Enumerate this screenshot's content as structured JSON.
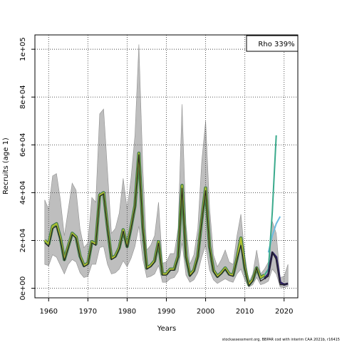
{
  "chart_data": {
    "type": "line",
    "xlabel": "Years",
    "ylabel": "Recruits (age 1)",
    "xlim": [
      1956.5,
      2023.5
    ],
    "ylim": [
      -4000,
      106000
    ],
    "xticks": [
      1960,
      1970,
      1980,
      1990,
      2000,
      2010,
      2020
    ],
    "xtick_labels": [
      "1960",
      "1970",
      "1980",
      "1990",
      "2000",
      "2010",
      "2020"
    ],
    "yticks": [
      0,
      20000,
      40000,
      60000,
      80000,
      100000
    ],
    "ytick_labels": [
      "0e+00",
      "2e+04",
      "4e+04",
      "6e+04",
      "8e+04",
      "1e+05"
    ],
    "grid": true,
    "legend_placement": "top-right",
    "annotation": "Rho 339%",
    "footer": "stockassessment.org, BBPAR cod with interim CAA 2021b, r16415",
    "colors": {
      "band": "#bebebe",
      "band_edge": "#909090",
      "main_line": "#222222",
      "retro_outline": "#3d7a4a",
      "retro_fill": "#b0c030",
      "retro_teal": "#3aaa8c",
      "retro_light_blue": "#6cbbe0",
      "retro_purple": "#2c1f60",
      "grid": "#444444"
    },
    "years": [
      1959,
      1960,
      1961,
      1962,
      1963,
      1964,
      1965,
      1966,
      1967,
      1968,
      1969,
      1970,
      1971,
      1972,
      1973,
      1974,
      1975,
      1976,
      1977,
      1978,
      1979,
      1980,
      1981,
      1982,
      1983,
      1984,
      1985,
      1986,
      1987,
      1988,
      1989,
      1990,
      1991,
      1992,
      1993,
      1994,
      1995,
      1996,
      1997,
      1998,
      1999,
      2000,
      2001,
      2002,
      2003,
      2004,
      2005,
      2006,
      2007,
      2008,
      2009,
      2010,
      2011,
      2012,
      2013,
      2014,
      2015,
      2016,
      2017,
      2018,
      2019,
      2020,
      2021
    ],
    "estimate": [
      19000,
      17500,
      25000,
      26000,
      20000,
      11500,
      17000,
      22500,
      21000,
      13000,
      9000,
      10000,
      19000,
      18000,
      38500,
      39500,
      25000,
      12000,
      13000,
      16500,
      24000,
      17000,
      25000,
      34000,
      56000,
      25000,
      8000,
      9000,
      11000,
      19000,
      5500,
      5500,
      7500,
      7500,
      13000,
      42000,
      13000,
      5000,
      7000,
      13000,
      28000,
      41000,
      17000,
      7000,
      4500,
      6000,
      8000,
      5500,
      5000,
      12000,
      18000,
      8000,
      1000,
      3000,
      8500,
      3000,
      4000,
      5000,
      15000,
      12000,
      1500,
      1500,
      2000
    ],
    "band_lower": [
      10000,
      9500,
      14000,
      13000,
      9500,
      6000,
      10000,
      12000,
      11000,
      6500,
      4500,
      5000,
      10000,
      10000,
      17000,
      17500,
      10000,
      6000,
      6500,
      8000,
      11500,
      9000,
      12500,
      17500,
      26000,
      12000,
      4500,
      5000,
      6000,
      9500,
      2500,
      2500,
      4000,
      4500,
      7000,
      19000,
      5500,
      2500,
      3500,
      6500,
      13000,
      18000,
      7500,
      3500,
      2000,
      3000,
      4000,
      3000,
      2500,
      6000,
      8000,
      3500,
      500,
      1500,
      4500,
      1500,
      2000,
      3000,
      8000,
      6000,
      500,
      300,
      800
    ],
    "band_upper": [
      37000,
      33000,
      47000,
      48000,
      37000,
      22000,
      33000,
      44000,
      41000,
      25000,
      17000,
      19000,
      38000,
      36000,
      73000,
      75000,
      49000,
      23000,
      25000,
      31500,
      46000,
      33000,
      46000,
      64000,
      102000,
      50000,
      16000,
      18000,
      22000,
      36000,
      10500,
      11000,
      14500,
      14500,
      25000,
      77000,
      27000,
      10000,
      14000,
      25000,
      53000,
      70000,
      34000,
      14000,
      9000,
      12000,
      16000,
      11000,
      10000,
      22000,
      31000,
      14000,
      2500,
      6000,
      16000,
      6000,
      8000,
      11000,
      28000,
      23000,
      4500,
      5000,
      10000
    ],
    "series": [
      {
        "years": [
          1959,
          1960,
          1961,
          1962,
          1963,
          1964,
          1965,
          1966,
          1967,
          1968,
          1969,
          1970,
          1971,
          1972,
          1973,
          1974,
          1975,
          1976,
          1977,
          1978,
          1979,
          1980,
          1981,
          1982,
          1983,
          1984,
          1985,
          1986,
          1987,
          1988,
          1989,
          1990,
          1991,
          1992,
          1993,
          1994,
          1995,
          1996,
          1997,
          1998,
          1999,
          2000,
          2001,
          2002,
          2003,
          2004,
          2005,
          2006,
          2007,
          2008,
          2009,
          2010,
          2011,
          2012,
          2013,
          2014,
          2015,
          2016,
          2017,
          2018
        ],
        "values": [
          20000,
          18500,
          26000,
          27000,
          21000,
          12000,
          17500,
          23000,
          21500,
          13500,
          9500,
          10500,
          19500,
          18500,
          39000,
          40000,
          25500,
          12500,
          13500,
          17000,
          24500,
          17500,
          25500,
          34500,
          56500,
          25500,
          8500,
          9500,
          11500,
          19500,
          6000,
          6000,
          8000,
          8000,
          13500,
          43000,
          13500,
          5500,
          7500,
          13500,
          28500,
          42000,
          17500,
          7500,
          5000,
          6500,
          8500,
          6000,
          5500,
          12500,
          21000,
          8500,
          1500,
          3500,
          8500,
          4500,
          5500,
          8000,
          32000,
          64000
        ]
      },
      {
        "years": [
          2016,
          2017,
          2018,
          2019
        ],
        "values": [
          15000,
          22000,
          27000,
          30000
        ]
      },
      {
        "years": [
          2015,
          2016,
          2017,
          2018,
          2019,
          2020,
          2021
        ],
        "values": [
          4000,
          6000,
          15000,
          13000,
          2500,
          1500,
          2000
        ]
      }
    ]
  }
}
